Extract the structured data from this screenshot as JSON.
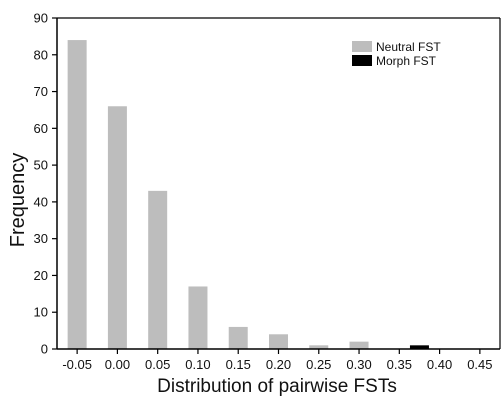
{
  "chart_data": {
    "type": "bar",
    "x_ticks": [
      "-0.05",
      "0.00",
      "0.05",
      "0.10",
      "0.15",
      "0.20",
      "0.25",
      "0.30",
      "0.35",
      "0.40",
      "0.45"
    ],
    "xlim": [
      -0.075,
      0.475
    ],
    "ylim": [
      0,
      90
    ],
    "y_ticks": [
      0,
      10,
      20,
      30,
      40,
      50,
      60,
      70,
      80,
      90
    ],
    "xlabel": "Distribution of pairwise FSTs",
    "ylabel": "Frequency",
    "grid": false,
    "legend_position": "top-right",
    "series": [
      {
        "name": "Neutral FST",
        "color": "#bdbdbd",
        "x": [
          -0.05,
          0.0,
          0.05,
          0.1,
          0.15,
          0.2,
          0.25,
          0.3
        ],
        "values": [
          84,
          66,
          43,
          17,
          6,
          4,
          1,
          2
        ]
      },
      {
        "name": "Morph FST",
        "color": "#000000",
        "x": [
          0.375
        ],
        "values": [
          1
        ]
      }
    ]
  }
}
